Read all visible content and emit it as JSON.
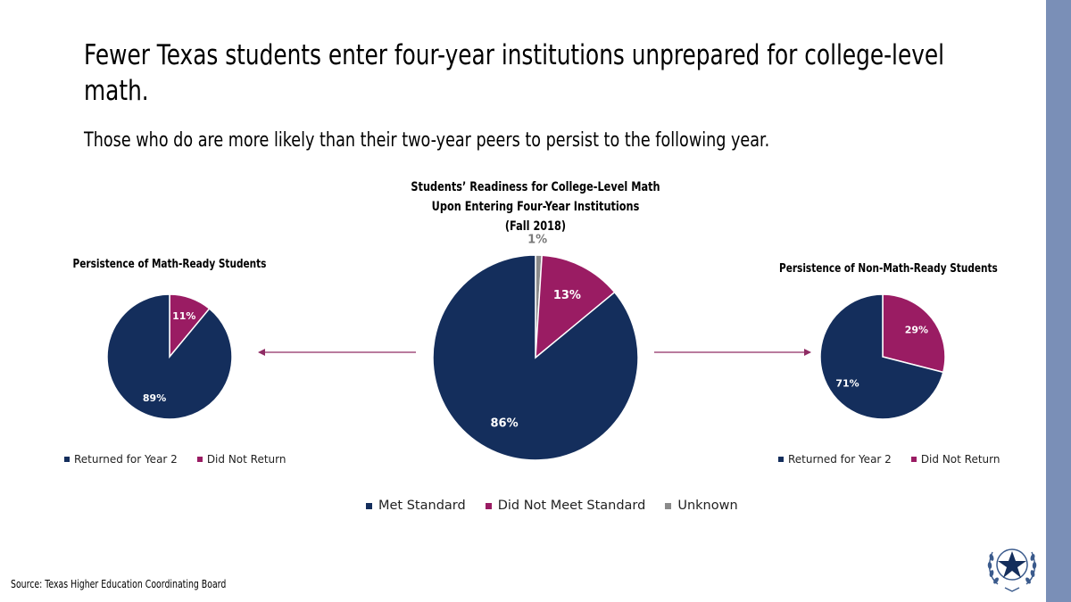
{
  "slide": {
    "title": "Fewer Texas students enter four-year institutions unprepared for college-level math.",
    "subtitle": "Those who do are more likely than their two-year peers to persist to the following year.",
    "source": "Source: Texas Higher Education Coordinating Board"
  },
  "colors": {
    "navy": "#142e5c",
    "magenta": "#9a1c63",
    "gray": "#8a8a8a",
    "accent_bar": "#7a8fb7",
    "arrow": "#8f2c64"
  },
  "chart_data": [
    {
      "type": "pie",
      "title": "Persistence of Math-Ready Students",
      "categories": [
        "Returned for Year 2",
        "Did Not Return"
      ],
      "values": [
        89,
        11
      ],
      "labels": [
        "89%",
        "11%"
      ],
      "legend": "bottom"
    },
    {
      "type": "pie",
      "title_lines": [
        "Students’ Readiness for College-Level Math",
        "Upon Entering Four-Year Institutions",
        "(Fall 2018)"
      ],
      "categories": [
        "Met Standard",
        "Did Not Meet Standard",
        "Unknown"
      ],
      "values": [
        86,
        13,
        1
      ],
      "labels": [
        "86%",
        "13%",
        "1%"
      ],
      "legend": "bottom"
    },
    {
      "type": "pie",
      "title": "Persistence of Non-Math-Ready Students",
      "categories": [
        "Returned for Year 2",
        "Did Not Return"
      ],
      "values": [
        71,
        29
      ],
      "labels": [
        "71%",
        "29%"
      ],
      "legend": "bottom"
    }
  ]
}
